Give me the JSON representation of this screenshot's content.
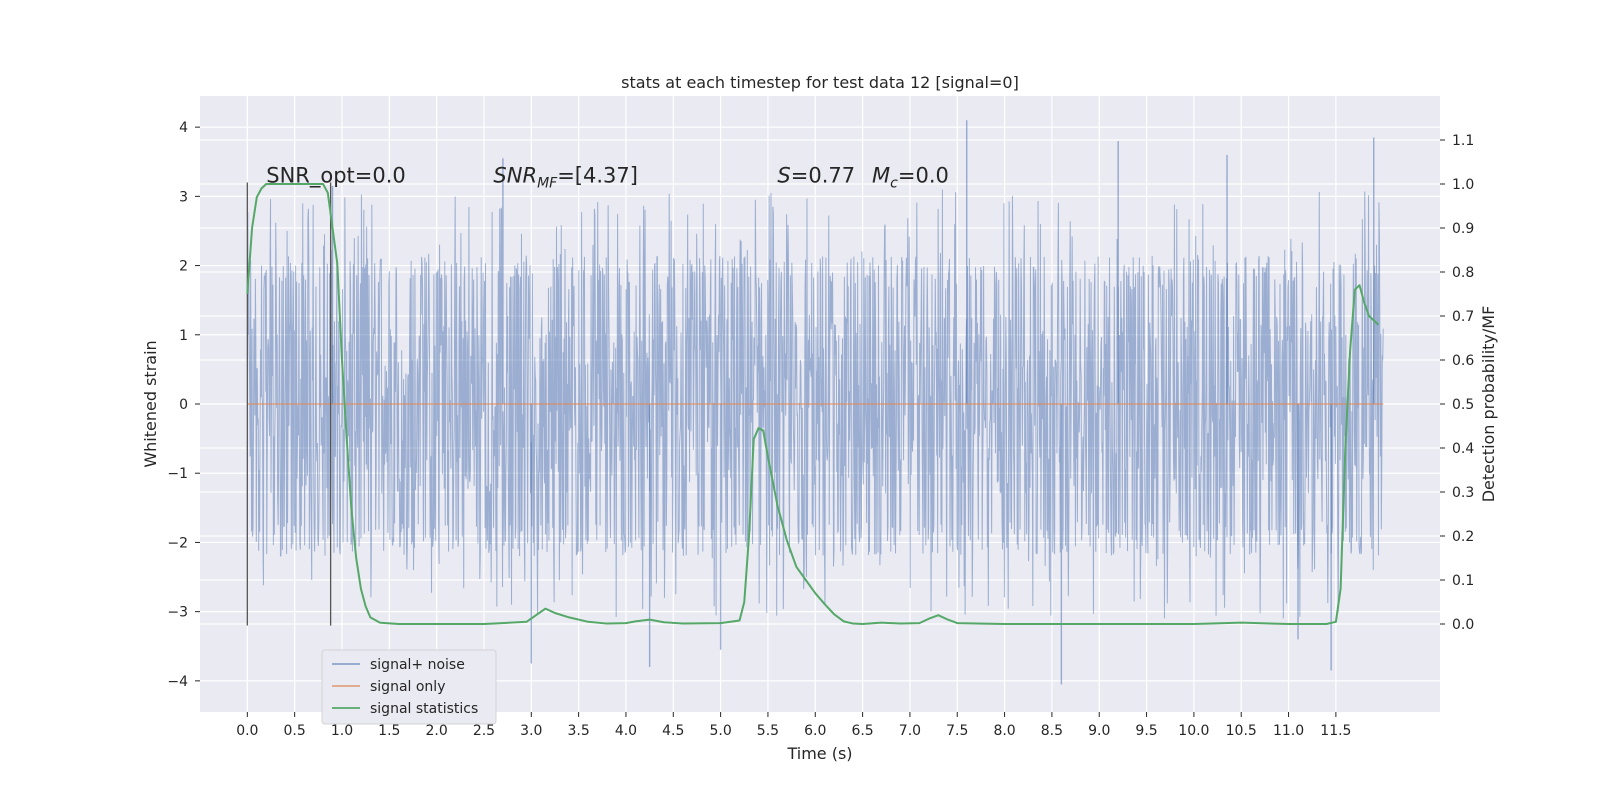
{
  "chart_data": {
    "type": "line",
    "title": "stats at each timestep for test data 12 [signal=0]",
    "xlabel": "Time (s)",
    "ylabel": "Whitened strain",
    "y2label": "Detection probability/MF",
    "xlim": [
      -0.5,
      12.6
    ],
    "ylim": [
      -4.45,
      4.45
    ],
    "y2lim": [
      -0.2,
      1.2
    ],
    "xticks": [
      0.0,
      0.5,
      1.0,
      1.5,
      2.0,
      2.5,
      3.0,
      3.5,
      4.0,
      4.5,
      5.0,
      5.5,
      6.0,
      6.5,
      7.0,
      7.5,
      8.0,
      8.5,
      9.0,
      9.5,
      10.0,
      10.5,
      11.0,
      11.5
    ],
    "xtick_labels": [
      "0.0",
      "0.5",
      "1.0",
      "1.5",
      "2.0",
      "2.5",
      "3.0",
      "3.5",
      "4.0",
      "4.5",
      "5.0",
      "5.5",
      "6.0",
      "6.5",
      "7.0",
      "7.5",
      "8.0",
      "8.5",
      "9.0",
      "9.5",
      "10.0",
      "10.5",
      "11.0",
      "11.5"
    ],
    "yticks": [
      -4,
      -3,
      -2,
      -1,
      0,
      1,
      2,
      3,
      4
    ],
    "ytick_labels": [
      "−4",
      "−3",
      "−2",
      "−1",
      "0",
      "1",
      "2",
      "3",
      "4"
    ],
    "y2ticks": [
      0.0,
      0.1,
      0.2,
      0.3,
      0.4,
      0.5,
      0.6,
      0.7,
      0.8,
      0.9,
      1.0,
      1.1
    ],
    "y2tick_labels": [
      "0.0",
      "0.1",
      "0.2",
      "0.3",
      "0.4",
      "0.5",
      "0.6",
      "0.7",
      "0.8",
      "0.9",
      "1.0",
      "1.1"
    ],
    "grid": true,
    "legend_placement": "lower-left",
    "colors": {
      "plot_background": "#eaeaf2",
      "grid": "#ffffff",
      "noise": "#4c72b0",
      "signal_only": "#dd8452",
      "statistics": "#55a868",
      "markers": "#555555"
    },
    "series": [
      {
        "name": "signal+ noise",
        "kind": "noise-band",
        "t_start": 0.0,
        "t_end": 12.0,
        "band_core": [
          -1.3,
          1.3
        ],
        "band_envelope": [
          -2.0,
          1.95
        ],
        "notable_peaks": [
          {
            "x": 0.9,
            "y": 3.15
          },
          {
            "x": 2.7,
            "y": 3.55
          },
          {
            "x": 3.0,
            "y": -3.75
          },
          {
            "x": 4.25,
            "y": -3.8
          },
          {
            "x": 5.0,
            "y": -3.55
          },
          {
            "x": 7.6,
            "y": 4.1
          },
          {
            "x": 8.6,
            "y": -4.05
          },
          {
            "x": 9.2,
            "y": 3.8
          },
          {
            "x": 10.35,
            "y": 3.6
          },
          {
            "x": 11.1,
            "y": -3.4
          },
          {
            "x": 11.45,
            "y": -3.85
          },
          {
            "x": 11.9,
            "y": 3.85
          }
        ]
      },
      {
        "name": "signal only",
        "x": [
          0.0,
          12.0
        ],
        "y": [
          0.0,
          0.0
        ]
      },
      {
        "name": "signal statistics",
        "axis": "right",
        "x": [
          0.0,
          0.05,
          0.1,
          0.15,
          0.2,
          0.3,
          0.4,
          0.5,
          0.6,
          0.7,
          0.8,
          0.85,
          0.9,
          0.95,
          1.0,
          1.05,
          1.1,
          1.15,
          1.2,
          1.25,
          1.3,
          1.4,
          1.6,
          2.0,
          2.5,
          2.95,
          3.05,
          3.15,
          3.25,
          3.4,
          3.6,
          3.8,
          4.0,
          4.1,
          4.25,
          4.4,
          4.6,
          5.0,
          5.2,
          5.25,
          5.3,
          5.35,
          5.4,
          5.45,
          5.5,
          5.6,
          5.7,
          5.8,
          5.9,
          6.0,
          6.1,
          6.2,
          6.3,
          6.4,
          6.5,
          6.7,
          6.9,
          7.1,
          7.2,
          7.3,
          7.4,
          7.5,
          8.0,
          9.0,
          10.0,
          10.5,
          11.0,
          11.4,
          11.5,
          11.55,
          11.6,
          11.65,
          11.7,
          11.75,
          11.8,
          11.85,
          11.9,
          11.95
        ],
        "y": [
          0.75,
          0.9,
          0.97,
          0.99,
          1.0,
          1.0,
          1.0,
          1.0,
          1.0,
          1.0,
          1.0,
          0.98,
          0.9,
          0.82,
          0.6,
          0.42,
          0.26,
          0.15,
          0.08,
          0.04,
          0.015,
          0.003,
          0.0,
          0.0,
          0.0,
          0.005,
          0.02,
          0.035,
          0.025,
          0.015,
          0.005,
          0.001,
          0.002,
          0.006,
          0.01,
          0.004,
          0.001,
          0.002,
          0.008,
          0.05,
          0.2,
          0.42,
          0.445,
          0.44,
          0.38,
          0.27,
          0.19,
          0.13,
          0.1,
          0.07,
          0.045,
          0.022,
          0.006,
          0.001,
          0.0,
          0.003,
          0.001,
          0.002,
          0.012,
          0.02,
          0.01,
          0.002,
          0.0,
          0.0,
          0.0,
          0.003,
          0.0,
          0.0,
          0.005,
          0.08,
          0.4,
          0.62,
          0.76,
          0.77,
          0.73,
          0.7,
          0.69,
          0.68
        ]
      }
    ],
    "markers": [
      {
        "x": 0.0,
        "y_top": 3.2,
        "y_bottom": -3.2
      },
      {
        "x": 0.88,
        "y_top": 3.2,
        "y_bottom": -3.2
      }
    ],
    "annotations": [
      {
        "id": "snr-opt",
        "text": "SNR_opt=0.0",
        "x": 0.2,
        "y": 3.2
      },
      {
        "id": "snr-mf",
        "text": "SNR",
        "sub": "MF",
        "suffix": "=[4.37]",
        "x": 2.6,
        "y": 3.2
      },
      {
        "id": "s-value",
        "text": "S",
        "suffix": "=0.77",
        "x": 5.6,
        "y": 3.2
      },
      {
        "id": "mc-value",
        "text": "M",
        "sub": "c",
        "suffix": "=0.0",
        "x": 6.6,
        "y": 3.2
      }
    ]
  }
}
